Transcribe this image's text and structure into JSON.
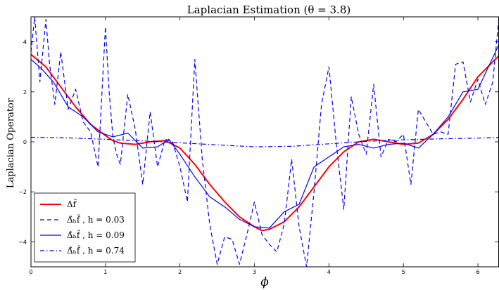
{
  "chart_data": {
    "type": "line",
    "title": "Laplacian Estimation (θ = 3.8)",
    "xlabel": "ϕ",
    "ylabel": "Laplacian Operator",
    "xlim": [
      0,
      6.2832
    ],
    "ylim": [
      -5,
      5
    ],
    "x_ticks": [
      0,
      1,
      2,
      3,
      4,
      5,
      6
    ],
    "y_ticks": [
      -4,
      -2,
      0,
      2,
      4
    ],
    "grid": false,
    "legend_position": "lower-left",
    "series": [
      {
        "name": "Δf̃",
        "color": "#ff0000",
        "style": "solid",
        "x": [
          0,
          0.2,
          0.4,
          0.6,
          0.8,
          1.0,
          1.1,
          1.2,
          1.4,
          1.6,
          1.8,
          2.0,
          2.2,
          2.4,
          2.6,
          2.8,
          3.0,
          3.1,
          3.2,
          3.4,
          3.6,
          3.8,
          4.0,
          4.2,
          4.4,
          4.6,
          4.8,
          5.0,
          5.2,
          5.4,
          5.6,
          5.8,
          6.0,
          6.2832
        ],
        "y": [
          3.5,
          3.0,
          2.2,
          1.4,
          0.7,
          0.25,
          0.05,
          -0.05,
          -0.1,
          0.0,
          0.05,
          -0.25,
          -0.9,
          -1.7,
          -2.4,
          -3.0,
          -3.4,
          -3.55,
          -3.5,
          -3.2,
          -2.6,
          -1.8,
          -1.0,
          -0.4,
          0.0,
          0.1,
          0.0,
          -0.1,
          -0.05,
          0.3,
          0.9,
          1.7,
          2.6,
          3.45
        ]
      },
      {
        "name": "Δ̂ₕf̃ , h = 0.03",
        "color": "#0000ff",
        "style": "dashed",
        "x": [
          0,
          0.05,
          0.12,
          0.2,
          0.25,
          0.32,
          0.4,
          0.5,
          0.6,
          0.7,
          0.8,
          0.9,
          1.0,
          1.05,
          1.1,
          1.15,
          1.2,
          1.3,
          1.4,
          1.5,
          1.6,
          1.7,
          1.8,
          1.9,
          2.0,
          2.1,
          2.2,
          2.3,
          2.4,
          2.5,
          2.6,
          2.7,
          2.8,
          2.9,
          3.0,
          3.1,
          3.2,
          3.3,
          3.4,
          3.5,
          3.6,
          3.7,
          3.8,
          3.9,
          4.0,
          4.1,
          4.2,
          4.3,
          4.4,
          4.5,
          4.6,
          4.7,
          4.8,
          4.9,
          5.0,
          5.1,
          5.2,
          5.3,
          5.4,
          5.5,
          5.6,
          5.7,
          5.8,
          5.9,
          6.0,
          6.1,
          6.2,
          6.2832
        ],
        "y": [
          3.6,
          5.0,
          2.4,
          4.9,
          3.1,
          1.5,
          3.6,
          1.3,
          2.1,
          0.8,
          0.4,
          -1.0,
          4.6,
          2.0,
          0.2,
          -0.5,
          -0.9,
          1.9,
          0.5,
          -1.7,
          1.2,
          -1.0,
          0.1,
          0.0,
          -1.0,
          -2.4,
          3.3,
          -0.7,
          -3.3,
          -4.9,
          -3.8,
          -3.9,
          -4.9,
          -3.7,
          -2.4,
          -3.7,
          -4.1,
          -4.4,
          -3.3,
          -0.7,
          -3.4,
          -5.0,
          -2.0,
          1.5,
          3.0,
          -0.1,
          -2.7,
          1.8,
          0.3,
          -0.5,
          2.3,
          -0.6,
          0.1,
          0.0,
          0.3,
          -1.7,
          1.3,
          0.8,
          0.3,
          0.4,
          0.3,
          3.1,
          3.2,
          1.6,
          2.5,
          1.5,
          2.4,
          5.0
        ]
      },
      {
        "name": "Δ̂ₕf̃ , h = 0.09",
        "color": "#0000ff",
        "style": "solid",
        "x": [
          0,
          0.15,
          0.3,
          0.5,
          0.7,
          0.9,
          1.1,
          1.3,
          1.5,
          1.7,
          1.85,
          2.0,
          2.2,
          2.4,
          2.6,
          2.8,
          3.0,
          3.2,
          3.4,
          3.6,
          3.8,
          4.0,
          4.2,
          4.4,
          4.6,
          4.8,
          5.0,
          5.2,
          5.4,
          5.6,
          5.8,
          6.0,
          6.2832
        ],
        "y": [
          3.3,
          2.9,
          2.4,
          1.4,
          1.0,
          0.4,
          0.2,
          0.35,
          -0.25,
          -0.2,
          0.1,
          -0.5,
          -1.4,
          -2.2,
          -2.6,
          -3.1,
          -3.4,
          -3.45,
          -2.8,
          -2.5,
          -1.0,
          -0.6,
          -0.2,
          -0.1,
          -0.25,
          -0.1,
          -0.05,
          -0.25,
          0.3,
          1.0,
          2.0,
          2.1,
          3.9
        ]
      },
      {
        "name": "Δ̂ₕf̃ , h = 0.74",
        "color": "#0000ff",
        "style": "dashdot",
        "x": [
          0,
          0.5,
          1.0,
          1.5,
          2.0,
          2.5,
          3.0,
          3.5,
          4.0,
          4.5,
          5.0,
          5.5,
          6.0,
          6.2832
        ],
        "y": [
          0.18,
          0.16,
          0.1,
          0.04,
          -0.04,
          -0.12,
          -0.2,
          -0.18,
          -0.08,
          0.02,
          0.08,
          0.12,
          0.15,
          0.18
        ]
      }
    ]
  }
}
